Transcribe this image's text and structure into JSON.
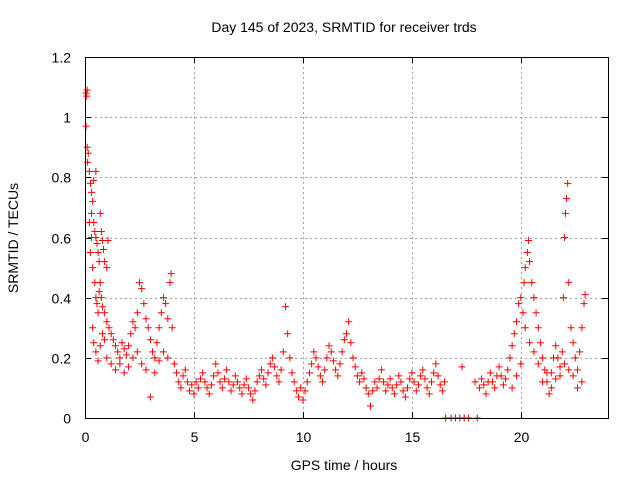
{
  "chart_data": {
    "type": "scatter",
    "title": "Day 145 of 2023, SRMTID for receiver trds",
    "xlabel": "GPS time / hours",
    "ylabel": "SRMTID / TECUs",
    "xlim": [
      0,
      24
    ],
    "ylim": [
      0,
      1.2
    ],
    "xticks": [
      0,
      5,
      10,
      15,
      20
    ],
    "xtick_labels": [
      "0",
      "5",
      "10",
      "15",
      "20"
    ],
    "yticks": [
      0,
      0.2,
      0.4,
      0.6,
      0.8,
      1.0,
      1.2
    ],
    "ytick_labels": [
      "0",
      "0.2",
      "0.4",
      "0.6",
      "0.8",
      "1",
      "1.2"
    ],
    "grid": true,
    "marker": "+",
    "marker_color": "#ff0000",
    "series": [
      {
        "name": "SRMTID",
        "points": [
          [
            0.05,
            1.08
          ],
          [
            0.08,
            1.07
          ],
          [
            0.1,
            1.09
          ],
          [
            0.05,
            0.97
          ],
          [
            0.1,
            0.9
          ],
          [
            0.15,
            0.88
          ],
          [
            0.12,
            0.85
          ],
          [
            0.2,
            0.82
          ],
          [
            0.25,
            0.78
          ],
          [
            0.3,
            0.75
          ],
          [
            0.35,
            0.72
          ],
          [
            0.3,
            0.68
          ],
          [
            0.4,
            0.65
          ],
          [
            0.45,
            0.62
          ],
          [
            0.5,
            0.6
          ],
          [
            0.55,
            0.58
          ],
          [
            0.6,
            0.55
          ],
          [
            0.65,
            0.52
          ],
          [
            0.7,
            0.68
          ],
          [
            0.75,
            0.62
          ],
          [
            0.8,
            0.59
          ],
          [
            0.85,
            0.56
          ],
          [
            0.9,
            0.52
          ],
          [
            1.0,
            0.5
          ],
          [
            1.05,
            0.59
          ],
          [
            0.5,
            0.82
          ],
          [
            0.4,
            0.79
          ],
          [
            0.3,
            0.6
          ],
          [
            0.2,
            0.65
          ],
          [
            0.25,
            0.55
          ],
          [
            0.35,
            0.5
          ],
          [
            0.45,
            0.45
          ],
          [
            0.5,
            0.4
          ],
          [
            0.55,
            0.38
          ],
          [
            0.6,
            0.35
          ],
          [
            0.65,
            0.42
          ],
          [
            0.7,
            0.45
          ],
          [
            0.75,
            0.4
          ],
          [
            0.8,
            0.37
          ],
          [
            0.9,
            0.35
          ],
          [
            1.0,
            0.32
          ],
          [
            1.1,
            0.3
          ],
          [
            1.2,
            0.28
          ],
          [
            1.3,
            0.26
          ],
          [
            1.4,
            0.24
          ],
          [
            1.5,
            0.22
          ],
          [
            1.6,
            0.2
          ],
          [
            1.7,
            0.25
          ],
          [
            1.8,
            0.23
          ],
          [
            1.9,
            0.21
          ],
          [
            2.0,
            0.24
          ],
          [
            2.1,
            0.28
          ],
          [
            2.2,
            0.32
          ],
          [
            2.3,
            0.3
          ],
          [
            2.4,
            0.35
          ],
          [
            2.5,
            0.45
          ],
          [
            2.6,
            0.43
          ],
          [
            2.7,
            0.38
          ],
          [
            2.8,
            0.33
          ],
          [
            2.9,
            0.3
          ],
          [
            3.0,
            0.26
          ],
          [
            3.1,
            0.22
          ],
          [
            3.2,
            0.2
          ],
          [
            3.3,
            0.25
          ],
          [
            3.4,
            0.3
          ],
          [
            3.5,
            0.35
          ],
          [
            3.6,
            0.4
          ],
          [
            3.7,
            0.38
          ],
          [
            3.8,
            0.33
          ],
          [
            3.9,
            0.45
          ],
          [
            3.95,
            0.48
          ],
          [
            4.0,
            0.3
          ],
          [
            0.35,
            0.3
          ],
          [
            0.4,
            0.25
          ],
          [
            0.5,
            0.22
          ],
          [
            0.6,
            0.19
          ],
          [
            0.7,
            0.24
          ],
          [
            0.8,
            0.28
          ],
          [
            0.9,
            0.26
          ],
          [
            1.0,
            0.2
          ],
          [
            1.2,
            0.18
          ],
          [
            1.4,
            0.16
          ],
          [
            1.6,
            0.18
          ],
          [
            1.8,
            0.15
          ],
          [
            2.0,
            0.17
          ],
          [
            2.2,
            0.2
          ],
          [
            2.4,
            0.22
          ],
          [
            2.6,
            0.18
          ],
          [
            2.8,
            0.16
          ],
          [
            3.0,
            0.07
          ],
          [
            3.2,
            0.15
          ],
          [
            3.4,
            0.19
          ],
          [
            3.6,
            0.22
          ],
          [
            3.8,
            0.2
          ],
          [
            4.1,
            0.18
          ],
          [
            4.2,
            0.15
          ],
          [
            4.3,
            0.12
          ],
          [
            4.4,
            0.1
          ],
          [
            4.5,
            0.14
          ],
          [
            4.6,
            0.16
          ],
          [
            4.7,
            0.12
          ],
          [
            4.8,
            0.09
          ],
          [
            4.9,
            0.11
          ],
          [
            5.0,
            0.08
          ],
          [
            5.1,
            0.12
          ],
          [
            5.2,
            0.1
          ],
          [
            5.3,
            0.13
          ],
          [
            5.4,
            0.15
          ],
          [
            5.5,
            0.12
          ],
          [
            5.6,
            0.1
          ],
          [
            5.7,
            0.08
          ],
          [
            5.8,
            0.11
          ],
          [
            5.9,
            0.14
          ],
          [
            6.0,
            0.18
          ],
          [
            6.1,
            0.15
          ],
          [
            6.2,
            0.12
          ],
          [
            6.3,
            0.1
          ],
          [
            6.4,
            0.13
          ],
          [
            6.5,
            0.16
          ],
          [
            6.6,
            0.12
          ],
          [
            6.7,
            0.09
          ],
          [
            6.8,
            0.11
          ],
          [
            6.9,
            0.14
          ],
          [
            7.0,
            0.12
          ],
          [
            7.1,
            0.1
          ],
          [
            7.2,
            0.08
          ],
          [
            7.3,
            0.11
          ],
          [
            7.4,
            0.13
          ],
          [
            7.5,
            0.1
          ],
          [
            7.6,
            0.08
          ],
          [
            7.7,
            0.06
          ],
          [
            7.8,
            0.09
          ],
          [
            7.9,
            0.12
          ],
          [
            8.0,
            0.14
          ],
          [
            8.1,
            0.16
          ],
          [
            8.2,
            0.13
          ],
          [
            8.3,
            0.11
          ],
          [
            8.4,
            0.15
          ],
          [
            8.5,
            0.18
          ],
          [
            8.6,
            0.2
          ],
          [
            8.7,
            0.17
          ],
          [
            8.8,
            0.14
          ],
          [
            8.9,
            0.12
          ],
          [
            9.0,
            0.16
          ],
          [
            9.1,
            0.22
          ],
          [
            9.2,
            0.37
          ],
          [
            9.3,
            0.28
          ],
          [
            9.4,
            0.2
          ],
          [
            9.5,
            0.15
          ],
          [
            9.6,
            0.12
          ],
          [
            9.7,
            0.09
          ],
          [
            9.8,
            0.07
          ],
          [
            9.9,
            0.1
          ],
          [
            10.0,
            0.06
          ],
          [
            10.1,
            0.09
          ],
          [
            10.2,
            0.12
          ],
          [
            10.3,
            0.15
          ],
          [
            10.4,
            0.18
          ],
          [
            10.5,
            0.22
          ],
          [
            10.6,
            0.2
          ],
          [
            10.7,
            0.17
          ],
          [
            10.8,
            0.14
          ],
          [
            10.9,
            0.12
          ],
          [
            11.0,
            0.16
          ],
          [
            11.1,
            0.2
          ],
          [
            11.2,
            0.24
          ],
          [
            11.3,
            0.22
          ],
          [
            11.4,
            0.19
          ],
          [
            11.5,
            0.16
          ],
          [
            11.6,
            0.14
          ],
          [
            11.7,
            0.18
          ],
          [
            11.8,
            0.22
          ],
          [
            11.9,
            0.26
          ],
          [
            12.0,
            0.28
          ],
          [
            12.1,
            0.32
          ],
          [
            12.2,
            0.25
          ],
          [
            12.3,
            0.2
          ],
          [
            12.4,
            0.17
          ],
          [
            12.5,
            0.14
          ],
          [
            12.6,
            0.12
          ],
          [
            12.7,
            0.15
          ],
          [
            12.8,
            0.13
          ],
          [
            12.9,
            0.1
          ],
          [
            13.0,
            0.08
          ],
          [
            13.1,
            0.04
          ],
          [
            13.2,
            0.09
          ],
          [
            13.3,
            0.12
          ],
          [
            13.4,
            0.1
          ],
          [
            13.5,
            0.13
          ],
          [
            13.6,
            0.16
          ],
          [
            13.7,
            0.12
          ],
          [
            13.8,
            0.09
          ],
          [
            13.9,
            0.11
          ],
          [
            14.0,
            0.13
          ],
          [
            14.1,
            0.1
          ],
          [
            14.2,
            0.08
          ],
          [
            14.3,
            0.11
          ],
          [
            14.4,
            0.14
          ],
          [
            14.5,
            0.12
          ],
          [
            14.6,
            0.09
          ],
          [
            14.7,
            0.07
          ],
          [
            14.8,
            0.1
          ],
          [
            14.9,
            0.13
          ],
          [
            15.0,
            0.15
          ],
          [
            15.1,
            0.12
          ],
          [
            15.2,
            0.09
          ],
          [
            15.3,
            0.11
          ],
          [
            15.4,
            0.14
          ],
          [
            15.5,
            0.16
          ],
          [
            15.6,
            0.13
          ],
          [
            15.7,
            0.1
          ],
          [
            15.8,
            0.08
          ],
          [
            15.9,
            0.12
          ],
          [
            16.0,
            0.15
          ],
          [
            16.1,
            0.18
          ],
          [
            16.2,
            0.14
          ],
          [
            16.3,
            0.11
          ],
          [
            16.4,
            0.09
          ],
          [
            16.5,
            0.12
          ],
          [
            16.55,
            0.0
          ],
          [
            16.8,
            0.0
          ],
          [
            17.0,
            0.0
          ],
          [
            17.2,
            0.0
          ],
          [
            17.3,
            0.17
          ],
          [
            17.4,
            0.0
          ],
          [
            17.6,
            0.0
          ],
          [
            18.0,
            0.0
          ],
          [
            17.9,
            0.12
          ],
          [
            18.1,
            0.1
          ],
          [
            18.2,
            0.13
          ],
          [
            18.3,
            0.11
          ],
          [
            18.4,
            0.08
          ],
          [
            18.5,
            0.12
          ],
          [
            18.6,
            0.15
          ],
          [
            18.7,
            0.12
          ],
          [
            18.8,
            0.1
          ],
          [
            18.9,
            0.14
          ],
          [
            19.0,
            0.17
          ],
          [
            19.1,
            0.14
          ],
          [
            19.2,
            0.11
          ],
          [
            19.3,
            0.13
          ],
          [
            19.4,
            0.16
          ],
          [
            19.5,
            0.2
          ],
          [
            19.6,
            0.24
          ],
          [
            19.7,
            0.28
          ],
          [
            19.8,
            0.32
          ],
          [
            19.9,
            0.38
          ],
          [
            20.0,
            0.4
          ],
          [
            20.1,
            0.35
          ],
          [
            20.15,
            0.45
          ],
          [
            20.2,
            0.5
          ],
          [
            20.3,
            0.55
          ],
          [
            20.35,
            0.59
          ],
          [
            20.4,
            0.52
          ],
          [
            20.5,
            0.45
          ],
          [
            20.6,
            0.4
          ],
          [
            20.7,
            0.35
          ],
          [
            20.8,
            0.3
          ],
          [
            20.9,
            0.25
          ],
          [
            21.0,
            0.2
          ],
          [
            21.1,
            0.16
          ],
          [
            21.2,
            0.12
          ],
          [
            21.3,
            0.08
          ],
          [
            21.4,
            0.15
          ],
          [
            21.5,
            0.2
          ],
          [
            21.6,
            0.24
          ],
          [
            21.7,
            0.2
          ],
          [
            21.8,
            0.17
          ],
          [
            21.9,
            0.22
          ],
          [
            21.95,
            0.4
          ],
          [
            22.0,
            0.6
          ],
          [
            22.05,
            0.68
          ],
          [
            22.1,
            0.73
          ],
          [
            22.15,
            0.78
          ],
          [
            22.2,
            0.45
          ],
          [
            22.3,
            0.3
          ],
          [
            22.4,
            0.25
          ],
          [
            22.5,
            0.2
          ],
          [
            22.6,
            0.16
          ],
          [
            22.7,
            0.22
          ],
          [
            22.8,
            0.3
          ],
          [
            22.9,
            0.38
          ],
          [
            22.95,
            0.41
          ],
          [
            19.6,
            0.1
          ],
          [
            19.8,
            0.14
          ],
          [
            20.0,
            0.18
          ],
          [
            20.2,
            0.3
          ],
          [
            20.4,
            0.25
          ],
          [
            20.6,
            0.22
          ],
          [
            20.8,
            0.18
          ],
          [
            21.0,
            0.12
          ],
          [
            21.2,
            0.15
          ],
          [
            21.4,
            0.1
          ],
          [
            21.6,
            0.13
          ],
          [
            21.8,
            0.14
          ],
          [
            22.0,
            0.18
          ],
          [
            22.2,
            0.16
          ],
          [
            22.4,
            0.14
          ],
          [
            22.6,
            0.1
          ],
          [
            22.8,
            0.12
          ]
        ]
      }
    ]
  }
}
